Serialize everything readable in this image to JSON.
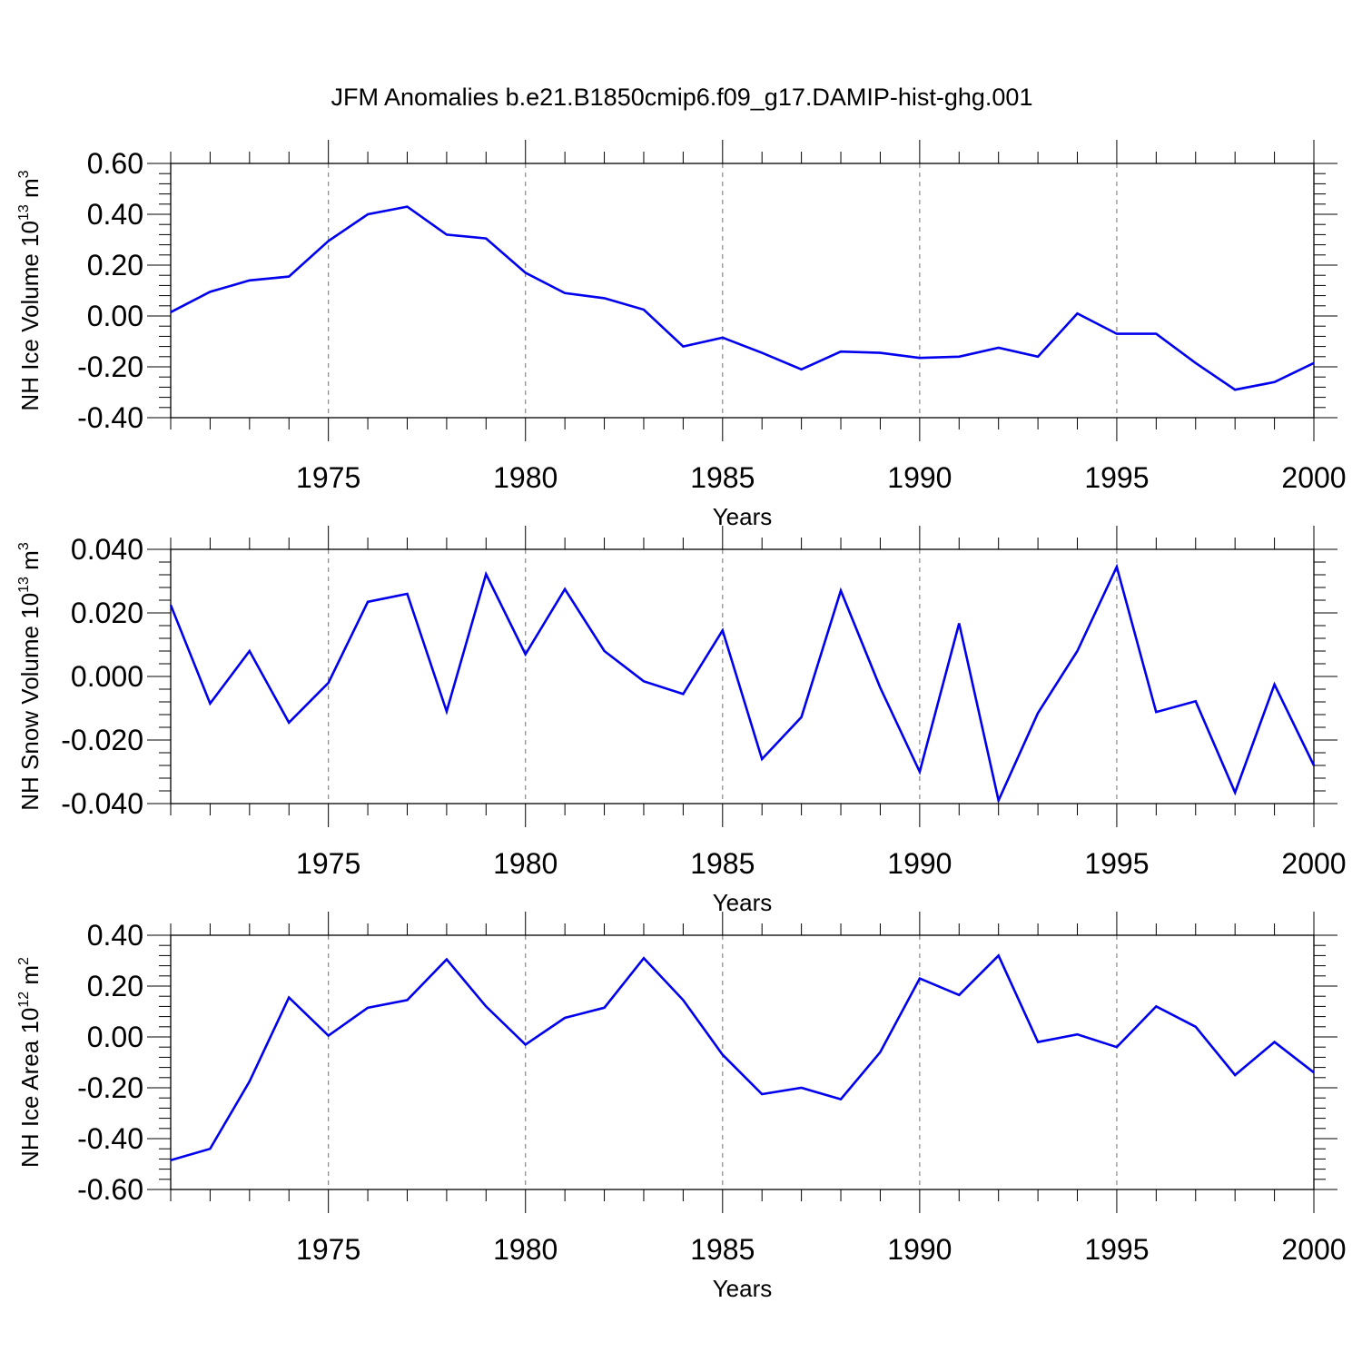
{
  "title": "JFM Anomalies b.e21.B1850cmip6.f09_g17.DAMIP-hist-ghg.001",
  "chart_data": [
    {
      "type": "line",
      "ylabel": "NH Ice Volume 10",
      "ylabel_exp": "13",
      "ylabel_unit": " m",
      "ylabel_unit_exp": "3",
      "xlabel": "Years",
      "xlim": [
        1971,
        2000
      ],
      "ylim": [
        -0.4,
        0.6
      ],
      "yticks": [
        -0.4,
        -0.2,
        0.0,
        0.2,
        0.4,
        0.6
      ],
      "yticklabels": [
        "-0.40",
        "-0.20",
        "0.00",
        "0.20",
        "0.40",
        "0.60"
      ],
      "xticks": [
        1975,
        1980,
        1985,
        1990,
        1995,
        2000
      ],
      "xticklabels": [
        "1975",
        "1980",
        "1985",
        "1990",
        "1995",
        "2000"
      ],
      "grid": "vertical dashed at major x ticks",
      "series_color": "#0000ee",
      "x": [
        1971,
        1972,
        1973,
        1974,
        1975,
        1976,
        1977,
        1978,
        1979,
        1980,
        1981,
        1982,
        1983,
        1984,
        1985,
        1986,
        1987,
        1988,
        1989,
        1990,
        1991,
        1992,
        1993,
        1994,
        1995,
        1996,
        1997,
        1998,
        1999,
        2000
      ],
      "y": [
        0.015,
        0.095,
        0.14,
        0.155,
        0.295,
        0.4,
        0.43,
        0.32,
        0.305,
        0.17,
        0.09,
        0.07,
        0.025,
        -0.12,
        -0.085,
        -0.145,
        -0.21,
        -0.14,
        -0.145,
        -0.165,
        -0.16,
        -0.125,
        -0.16,
        0.01,
        -0.07,
        -0.07,
        -0.185,
        -0.29,
        -0.26,
        -0.185
      ]
    },
    {
      "type": "line",
      "ylabel": "NH Snow Volume 10",
      "ylabel_exp": "13",
      "ylabel_unit": " m",
      "ylabel_unit_exp": "3",
      "xlabel": "Years",
      "xlim": [
        1971,
        2000
      ],
      "ylim": [
        -0.04,
        0.04
      ],
      "yticks": [
        -0.04,
        -0.02,
        0.0,
        0.02,
        0.04
      ],
      "yticklabels": [
        "-0.040",
        "-0.020",
        "0.000",
        "0.020",
        "0.040"
      ],
      "xticks": [
        1975,
        1980,
        1985,
        1990,
        1995,
        2000
      ],
      "xticklabels": [
        "1975",
        "1980",
        "1985",
        "1990",
        "1995",
        "2000"
      ],
      "grid": "vertical dashed at major x ticks",
      "series_color": "#0000ee",
      "x": [
        1971,
        1972,
        1973,
        1974,
        1975,
        1976,
        1977,
        1978,
        1979,
        1980,
        1981,
        1982,
        1983,
        1984,
        1985,
        1986,
        1987,
        1988,
        1989,
        1990,
        1991,
        1992,
        1993,
        1994,
        1995,
        1996,
        1997,
        1998,
        1999,
        2000
      ],
      "y": [
        0.0225,
        -0.0085,
        0.008,
        -0.0145,
        -0.002,
        0.0235,
        0.026,
        -0.011,
        0.0322,
        0.007,
        0.0275,
        0.008,
        -0.0015,
        -0.0055,
        0.0145,
        -0.026,
        -0.0128,
        0.027,
        -0.0035,
        -0.03,
        0.0167,
        -0.039,
        -0.0115,
        0.008,
        0.0345,
        -0.0112,
        -0.0078,
        -0.0365,
        -0.0025,
        -0.028
      ]
    },
    {
      "type": "line",
      "ylabel": "NH Ice Area 10",
      "ylabel_exp": "12",
      "ylabel_unit": " m",
      "ylabel_unit_exp": "2",
      "xlabel": "Years",
      "xlim": [
        1971,
        2000
      ],
      "ylim": [
        -0.6,
        0.4
      ],
      "yticks": [
        -0.6,
        -0.4,
        -0.2,
        0.0,
        0.2,
        0.4
      ],
      "yticklabels": [
        "-0.60",
        "-0.40",
        "-0.20",
        "0.00",
        "0.20",
        "0.40"
      ],
      "xticks": [
        1975,
        1980,
        1985,
        1990,
        1995,
        2000
      ],
      "xticklabels": [
        "1975",
        "1980",
        "1985",
        "1990",
        "1995",
        "2000"
      ],
      "grid": "vertical dashed at major x ticks",
      "series_color": "#0000ee",
      "x": [
        1971,
        1972,
        1973,
        1974,
        1975,
        1976,
        1977,
        1978,
        1979,
        1980,
        1981,
        1982,
        1983,
        1984,
        1985,
        1986,
        1987,
        1988,
        1989,
        1990,
        1991,
        1992,
        1993,
        1994,
        1995,
        1996,
        1997,
        1998,
        1999,
        2000
      ],
      "y": [
        -0.485,
        -0.44,
        -0.175,
        0.155,
        0.005,
        0.115,
        0.145,
        0.305,
        0.12,
        -0.03,
        0.075,
        0.115,
        0.31,
        0.145,
        -0.07,
        -0.225,
        -0.2,
        -0.245,
        -0.06,
        0.23,
        0.165,
        0.32,
        -0.02,
        0.01,
        -0.04,
        0.12,
        0.04,
        -0.15,
        -0.02,
        -0.14
      ]
    }
  ]
}
